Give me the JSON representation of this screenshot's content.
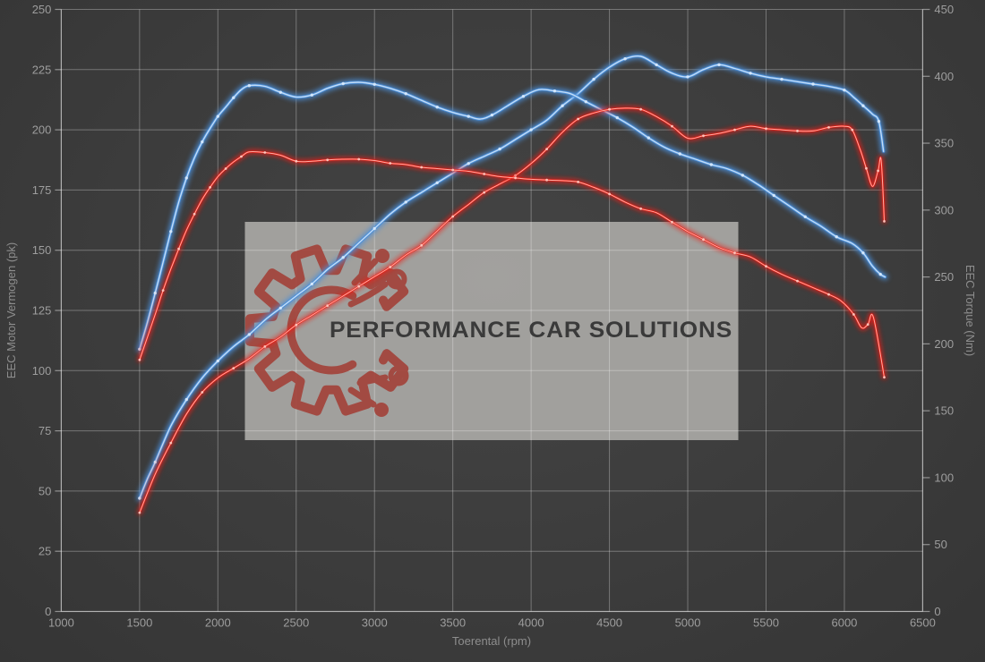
{
  "watermark": {
    "brand": "PERFORMANCE CAR SOLUTIONS",
    "box_color": "#a9a8a5",
    "logo_color": "#a34139",
    "text_color": "#3a3a3a"
  },
  "colors": {
    "background": "#3c3c3c",
    "grid": "#ffffff",
    "tick_text": "#9d9d9d",
    "axis_title_text": "#8d8d8d",
    "blue_curve": "#4b8fd9",
    "red_curve": "#ee1a12"
  },
  "chart_data": {
    "type": "line",
    "title": "",
    "grid": true,
    "legend": false,
    "x_axis": {
      "label": "Toerental (rpm)",
      "min": 1000,
      "max": 6500,
      "ticks": [
        1000,
        1500,
        2000,
        2500,
        3000,
        3500,
        4000,
        4500,
        5000,
        5500,
        6000,
        6500
      ]
    },
    "y_left": {
      "label": "EEC Motor Vermogen (pk)",
      "min": 0,
      "max": 250,
      "ticks": [
        0,
        25,
        50,
        75,
        100,
        125,
        150,
        175,
        200,
        225,
        250
      ]
    },
    "y_right": {
      "label": "EEC Torque (Nm)",
      "min": 0,
      "max": 450,
      "ticks": [
        0,
        50,
        100,
        150,
        200,
        250,
        300,
        350,
        400,
        450
      ]
    },
    "series": [
      {
        "name": "power-blue",
        "axis": "left",
        "unit": "pk",
        "color": "#4b8fd9",
        "core": "#cfe4fa",
        "marker": "#d7e9fc",
        "glow_width": 7,
        "main_width": 3.2,
        "core_width": 1.4,
        "points": [
          [
            1500,
            47
          ],
          [
            1550,
            55
          ],
          [
            1600,
            62
          ],
          [
            1700,
            77
          ],
          [
            1800,
            88
          ],
          [
            1900,
            97
          ],
          [
            2000,
            104
          ],
          [
            2100,
            110
          ],
          [
            2200,
            115
          ],
          [
            2300,
            121
          ],
          [
            2400,
            126
          ],
          [
            2500,
            131
          ],
          [
            2600,
            136
          ],
          [
            2700,
            142
          ],
          [
            2800,
            147
          ],
          [
            2900,
            153
          ],
          [
            3000,
            159
          ],
          [
            3100,
            165
          ],
          [
            3200,
            170
          ],
          [
            3300,
            174
          ],
          [
            3400,
            178
          ],
          [
            3500,
            182
          ],
          [
            3600,
            186
          ],
          [
            3700,
            189
          ],
          [
            3800,
            192
          ],
          [
            3900,
            196
          ],
          [
            4000,
            200
          ],
          [
            4100,
            204
          ],
          [
            4200,
            210
          ],
          [
            4300,
            215
          ],
          [
            4400,
            221
          ],
          [
            4500,
            226
          ],
          [
            4600,
            229.5
          ],
          [
            4700,
            230.5
          ],
          [
            4800,
            227
          ],
          [
            4900,
            223.5
          ],
          [
            5000,
            222
          ],
          [
            5100,
            225
          ],
          [
            5200,
            227
          ],
          [
            5300,
            225.5
          ],
          [
            5400,
            223.5
          ],
          [
            5500,
            222
          ],
          [
            5600,
            221
          ],
          [
            5700,
            220
          ],
          [
            5800,
            219
          ],
          [
            5900,
            218
          ],
          [
            6000,
            216.5
          ],
          [
            6060,
            213.5
          ],
          [
            6120,
            210
          ],
          [
            6180,
            206.5
          ],
          [
            6220,
            203.5
          ],
          [
            6250,
            191
          ]
        ]
      },
      {
        "name": "torque-blue",
        "axis": "right",
        "unit": "Nm",
        "color": "#4b8fd9",
        "core": "#cfe4fa",
        "marker": "#d7e9fc",
        "glow_width": 7,
        "main_width": 3.2,
        "core_width": 1.4,
        "points": [
          [
            1500,
            196
          ],
          [
            1550,
            216
          ],
          [
            1600,
            238
          ],
          [
            1650,
            261
          ],
          [
            1700,
            284
          ],
          [
            1750,
            306
          ],
          [
            1800,
            324
          ],
          [
            1850,
            339
          ],
          [
            1900,
            351
          ],
          [
            1950,
            361
          ],
          [
            2000,
            370
          ],
          [
            2050,
            377
          ],
          [
            2100,
            384
          ],
          [
            2150,
            390
          ],
          [
            2200,
            393
          ],
          [
            2300,
            392.5
          ],
          [
            2400,
            388
          ],
          [
            2500,
            384.5
          ],
          [
            2600,
            386
          ],
          [
            2700,
            391
          ],
          [
            2800,
            394.5
          ],
          [
            2900,
            395.5
          ],
          [
            3000,
            394
          ],
          [
            3100,
            391
          ],
          [
            3200,
            387
          ],
          [
            3300,
            382
          ],
          [
            3400,
            377
          ],
          [
            3500,
            373
          ],
          [
            3600,
            370
          ],
          [
            3675,
            368
          ],
          [
            3750,
            371
          ],
          [
            3850,
            378
          ],
          [
            3950,
            385
          ],
          [
            4050,
            390
          ],
          [
            4150,
            389
          ],
          [
            4250,
            387
          ],
          [
            4350,
            381
          ],
          [
            4450,
            375
          ],
          [
            4550,
            369
          ],
          [
            4650,
            362
          ],
          [
            4750,
            354
          ],
          [
            4850,
            347
          ],
          [
            4950,
            342
          ],
          [
            5050,
            338
          ],
          [
            5150,
            334
          ],
          [
            5250,
            331
          ],
          [
            5350,
            326
          ],
          [
            5450,
            319
          ],
          [
            5550,
            311
          ],
          [
            5650,
            303
          ],
          [
            5750,
            295
          ],
          [
            5850,
            288
          ],
          [
            5950,
            280
          ],
          [
            6050,
            275
          ],
          [
            6120,
            268
          ],
          [
            6180,
            258
          ],
          [
            6230,
            252
          ],
          [
            6260,
            250
          ]
        ]
      },
      {
        "name": "power-red",
        "axis": "left",
        "unit": "pk",
        "color": "#ee1a12",
        "core": "#ffbcb2",
        "marker": "#ffc9c0",
        "glow_width": 5,
        "main_width": 2.1,
        "core_width": 1.0,
        "points": [
          [
            1500,
            41
          ],
          [
            1600,
            57
          ],
          [
            1700,
            70
          ],
          [
            1800,
            82
          ],
          [
            1900,
            91
          ],
          [
            2000,
            97
          ],
          [
            2100,
            101
          ],
          [
            2200,
            105
          ],
          [
            2300,
            110
          ],
          [
            2400,
            114
          ],
          [
            2500,
            119
          ],
          [
            2600,
            123
          ],
          [
            2700,
            127
          ],
          [
            2800,
            131
          ],
          [
            2900,
            135
          ],
          [
            3000,
            139
          ],
          [
            3100,
            143
          ],
          [
            3200,
            148
          ],
          [
            3300,
            152
          ],
          [
            3400,
            158
          ],
          [
            3500,
            164
          ],
          [
            3600,
            169
          ],
          [
            3700,
            174
          ],
          [
            3800,
            177.5
          ],
          [
            3900,
            181
          ],
          [
            4000,
            186
          ],
          [
            4100,
            192
          ],
          [
            4200,
            199
          ],
          [
            4300,
            204.5
          ],
          [
            4400,
            207
          ],
          [
            4500,
            208.5
          ],
          [
            4600,
            209
          ],
          [
            4700,
            208.5
          ],
          [
            4800,
            205.5
          ],
          [
            4900,
            201.5
          ],
          [
            5000,
            196.5
          ],
          [
            5100,
            197.5
          ],
          [
            5200,
            198.5
          ],
          [
            5300,
            200
          ],
          [
            5400,
            201.5
          ],
          [
            5500,
            200.5
          ],
          [
            5600,
            200
          ],
          [
            5700,
            199.5
          ],
          [
            5800,
            199.5
          ],
          [
            5900,
            201
          ],
          [
            6000,
            201.5
          ],
          [
            6050,
            200
          ],
          [
            6100,
            192
          ],
          [
            6140,
            184
          ],
          [
            6180,
            176.5
          ],
          [
            6215,
            183
          ],
          [
            6235,
            187.5
          ],
          [
            6255,
            162
          ]
        ]
      },
      {
        "name": "torque-red",
        "axis": "right",
        "unit": "Nm",
        "color": "#ee1a12",
        "core": "#ffbcb2",
        "marker": "#ffc9c0",
        "glow_width": 5,
        "main_width": 2.1,
        "core_width": 1.0,
        "points": [
          [
            1500,
            188
          ],
          [
            1600,
            222
          ],
          [
            1650,
            240
          ],
          [
            1700,
            256
          ],
          [
            1750,
            271
          ],
          [
            1800,
            285
          ],
          [
            1850,
            297
          ],
          [
            1900,
            308
          ],
          [
            1950,
            317
          ],
          [
            2000,
            325
          ],
          [
            2050,
            331
          ],
          [
            2100,
            336
          ],
          [
            2150,
            340
          ],
          [
            2200,
            343.5
          ],
          [
            2300,
            343
          ],
          [
            2400,
            341
          ],
          [
            2500,
            336.5
          ],
          [
            2600,
            336.5
          ],
          [
            2700,
            337.5
          ],
          [
            2800,
            338
          ],
          [
            2900,
            338
          ],
          [
            3000,
            337
          ],
          [
            3100,
            335
          ],
          [
            3200,
            334
          ],
          [
            3300,
            332
          ],
          [
            3400,
            331
          ],
          [
            3500,
            330
          ],
          [
            3600,
            329
          ],
          [
            3700,
            327
          ],
          [
            3800,
            325
          ],
          [
            3900,
            324
          ],
          [
            4000,
            323
          ],
          [
            4100,
            322.5
          ],
          [
            4200,
            322
          ],
          [
            4300,
            321
          ],
          [
            4400,
            317
          ],
          [
            4500,
            312
          ],
          [
            4600,
            306
          ],
          [
            4700,
            301
          ],
          [
            4800,
            298
          ],
          [
            4900,
            291
          ],
          [
            5000,
            284
          ],
          [
            5100,
            278
          ],
          [
            5200,
            272
          ],
          [
            5300,
            268
          ],
          [
            5400,
            265
          ],
          [
            5500,
            258
          ],
          [
            5600,
            252
          ],
          [
            5700,
            247
          ],
          [
            5800,
            242
          ],
          [
            5900,
            237
          ],
          [
            5980,
            232
          ],
          [
            6060,
            222
          ],
          [
            6110,
            212
          ],
          [
            6150,
            214.5
          ],
          [
            6185,
            220
          ],
          [
            6255,
            175
          ]
        ]
      }
    ]
  }
}
